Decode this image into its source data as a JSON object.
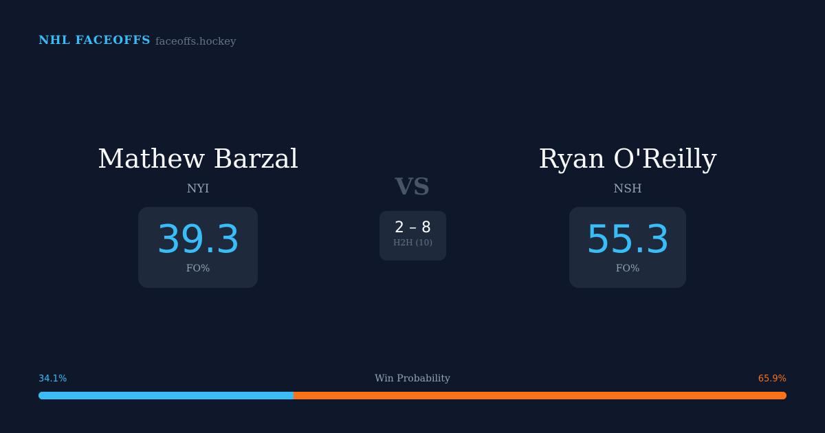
{
  "header": {
    "brand": "NHL FACEOFFS",
    "site": "faceoffs.hockey"
  },
  "left": {
    "name": "Mathew Barzal",
    "team": "NYI",
    "fo_pct": "39.3",
    "fo_label": "FO%"
  },
  "right": {
    "name": "Ryan O'Reilly",
    "team": "NSH",
    "fo_pct": "55.3",
    "fo_label": "FO%"
  },
  "center": {
    "vs": "VS",
    "score": "2 – 8",
    "h2h_label": "H2H (10)"
  },
  "win_probability": {
    "title": "Win Probability",
    "left_label": "34.1%",
    "right_label": "65.9%",
    "left_value": 34.1,
    "right_value": 65.9,
    "left_color": "#38bdf8",
    "right_color": "#f97316"
  }
}
